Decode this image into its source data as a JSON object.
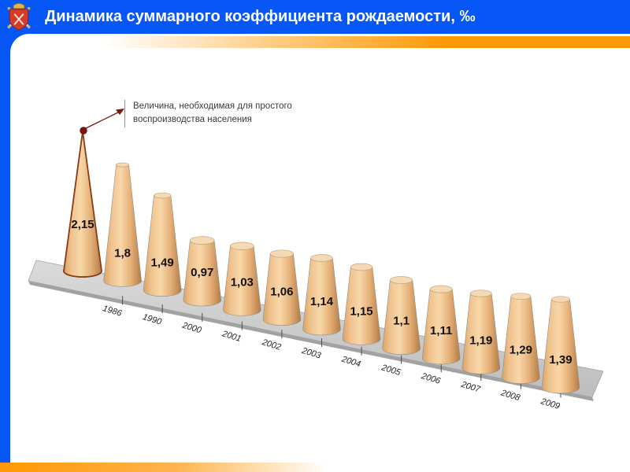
{
  "header": {
    "title": "Динамика суммарного коэффициента рождаемости, ‰",
    "logo": "saint-petersburg-coat-of-arms"
  },
  "theme": {
    "header_blue": "#0657F5",
    "accent_orange": "#FF9907",
    "panel_white": "#FFFFFF",
    "cone_light": "#F8D7A9",
    "cone_dark": "#B27C48",
    "cone_top_face": "#F4D9B4",
    "highlight_outline": "#8C3A12",
    "floor_gray": "#CBCBCB",
    "annotation_red": "#7B150C",
    "text_dark": "#111111"
  },
  "chart_data": {
    "type": "bar",
    "variant": "3d-cone",
    "title": "Динамика суммарного коэффициента рождаемости, ‰",
    "unit": "‰",
    "categories": [
      "",
      "1986",
      "1990",
      "2000",
      "2001",
      "2002",
      "2003",
      "2004",
      "2005",
      "2006",
      "2007",
      "2008",
      "2009"
    ],
    "values": [
      2.15,
      1.8,
      1.49,
      0.97,
      1.03,
      1.06,
      1.14,
      1.15,
      1.1,
      1.11,
      1.19,
      1.29,
      1.39
    ],
    "value_labels": [
      "2,15",
      "1,8",
      "1,49",
      "0,97",
      "1,03",
      "1,06",
      "1,14",
      "1,15",
      "1,1",
      "1,11",
      "1,19",
      "1,29",
      "1,39"
    ],
    "highlight_index": 0,
    "annotation": {
      "text": "Величина, необходимая для простого воспроизводства населения",
      "points_to_value": "2,15"
    },
    "ylim": [
      0,
      2.2
    ],
    "xlabel": "",
    "ylabel": "",
    "legend": false,
    "gridlines": false
  }
}
